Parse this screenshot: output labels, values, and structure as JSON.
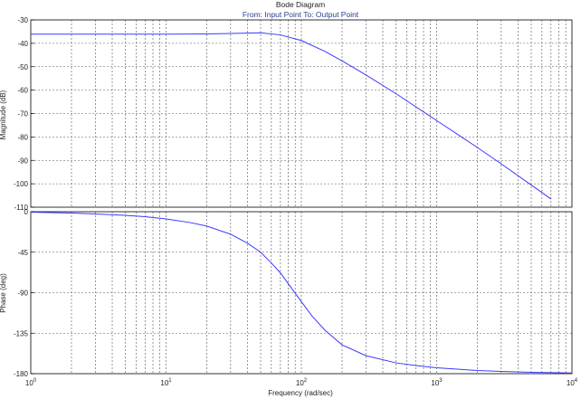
{
  "chart_data": [
    {
      "type": "line",
      "panel": "magnitude",
      "title": "Bode Diagram",
      "subtitle": "From: Input Point  To: Output Point",
      "xlabel": "",
      "ylabel": "Magnitude (dB)",
      "xscale": "log",
      "xlim": [
        1,
        10000
      ],
      "ylim": [
        -110,
        -30
      ],
      "yticks": [
        -30,
        -40,
        -50,
        -60,
        -70,
        -80,
        -90,
        -100,
        -110
      ],
      "grid": true,
      "series": [
        {
          "x": [
            1,
            5,
            10,
            20,
            30,
            50,
            70,
            100,
            150,
            200,
            300,
            500,
            1000,
            2000,
            3000,
            5000,
            7000
          ],
          "y": [
            -36.1,
            -36.1,
            -36.1,
            -36.0,
            -35.8,
            -35.5,
            -36.4,
            -38.8,
            -43.5,
            -47.5,
            -53.5,
            -61.5,
            -73.0,
            -84.5,
            -91.5,
            -100.5,
            -106.5
          ]
        }
      ]
    },
    {
      "type": "line",
      "panel": "phase",
      "xlabel": "Frequency  (rad/sec)",
      "ylabel": "Phase (deg)",
      "xscale": "log",
      "xlim": [
        1,
        10000
      ],
      "ylim": [
        -180,
        0
      ],
      "xticks": [
        "10^0",
        "10^1",
        "10^2",
        "10^3",
        "10^4"
      ],
      "yticks": [
        0,
        -45,
        -90,
        -135,
        -180
      ],
      "grid": true,
      "series": [
        {
          "x": [
            1,
            2,
            3,
            5,
            7,
            10,
            15,
            20,
            30,
            40,
            50,
            60,
            70,
            80,
            100,
            120,
            150,
            200,
            300,
            500,
            700,
            1000,
            2000,
            3000,
            5000,
            10000
          ],
          "y": [
            -0.5,
            -1.5,
            -2.5,
            -4,
            -5.5,
            -8,
            -12,
            -16,
            -25,
            -35,
            -45,
            -57,
            -68,
            -80,
            -100,
            -116,
            -132,
            -148,
            -160,
            -168,
            -171,
            -173.5,
            -176.5,
            -177.5,
            -178.5,
            -179.2
          ]
        }
      ]
    }
  ],
  "colors": {
    "line": "#3a3aff",
    "grid": "#555555",
    "axis": "#000000"
  }
}
